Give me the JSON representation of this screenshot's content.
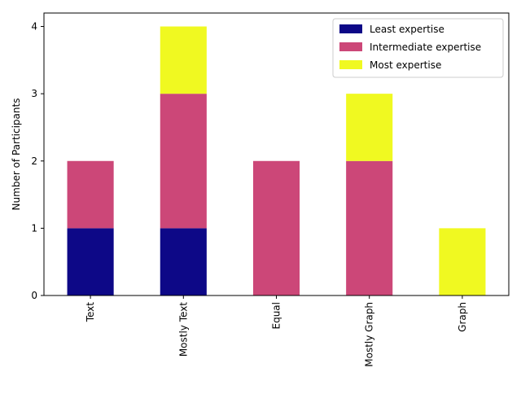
{
  "chart_data": {
    "type": "bar",
    "stacked": true,
    "categories": [
      "Text",
      "Mostly Text",
      "Equal",
      "Mostly Graph",
      "Graph"
    ],
    "series": [
      {
        "name": "Least expertise",
        "values": [
          1,
          1,
          0,
          0,
          0
        ],
        "color": "#0d0887"
      },
      {
        "name": "Intermediate expertise",
        "values": [
          1,
          2,
          2,
          2,
          0
        ],
        "color": "#cc4778"
      },
      {
        "name": "Most expertise",
        "values": [
          0,
          1,
          0,
          1,
          1
        ],
        "color": "#f0f921"
      }
    ],
    "title": "",
    "xlabel": "",
    "ylabel": "Number of Participants",
    "ylim": [
      0,
      4.2
    ],
    "yticks": [
      0,
      1,
      2,
      3,
      4
    ],
    "grid": false,
    "legend_position": "top-right",
    "x_tick_rotation": 90
  }
}
